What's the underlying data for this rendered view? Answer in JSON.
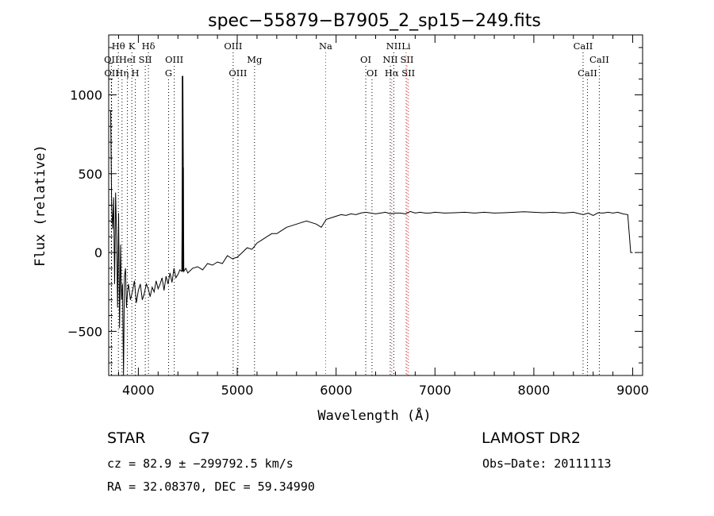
{
  "chart_data": {
    "type": "line",
    "title": "spec−55879−B7905_2_sp15−249.fits",
    "xlabel": "Wavelength (Å)",
    "ylabel": "Flux (relative)",
    "xlim": [
      3700,
      9100
    ],
    "ylim": [
      -780,
      1380
    ],
    "xticks": [
      4000,
      5000,
      6000,
      7000,
      8000,
      9000
    ],
    "yticks": [
      -500,
      0,
      500,
      1000
    ],
    "yticklabels": [
      "−500",
      "0",
      "500",
      "1000"
    ],
    "grid": false,
    "series": [
      {
        "x": [
          3720,
          3730,
          3740,
          3750,
          3760,
          3770,
          3780,
          3790,
          3800,
          3810,
          3820,
          3830,
          3840,
          3850,
          3860,
          3870,
          3880,
          3890,
          3900,
          3920,
          3940,
          3960,
          3980,
          4000,
          4020,
          4040,
          4060,
          4080,
          4100,
          4120,
          4140,
          4160,
          4180,
          4200,
          4220,
          4240,
          4260,
          4280,
          4300,
          4320,
          4340,
          4360,
          4380,
          4400,
          4420,
          4440,
          4450,
          4460,
          4480,
          4500,
          4550,
          4600,
          4650,
          4700,
          4750,
          4800,
          4850,
          4900,
          4950,
          5000,
          5050,
          5100,
          5150,
          5200,
          5250,
          5300,
          5350,
          5400,
          5450,
          5500,
          5550,
          5600,
          5650,
          5700,
          5750,
          5800,
          5850,
          5900,
          5950,
          6000,
          6050,
          6100,
          6150,
          6200,
          6250,
          6300,
          6350,
          6400,
          6450,
          6500,
          6550,
          6600,
          6650,
          6700,
          6750,
          6800,
          6850,
          6900,
          6950,
          7000,
          7100,
          7200,
          7300,
          7400,
          7500,
          7600,
          7700,
          7800,
          7900,
          8000,
          8100,
          8200,
          8300,
          8400,
          8500,
          8550,
          8600,
          8650,
          8700,
          8750,
          8800,
          8850,
          8900,
          8950,
          8980,
          9000
        ],
        "y": [
          900,
          300,
          150,
          350,
          -200,
          380,
          100,
          -350,
          250,
          -480,
          50,
          -300,
          -200,
          -780,
          -150,
          -100,
          -350,
          -250,
          -200,
          -300,
          -250,
          -180,
          -320,
          -240,
          -200,
          -300,
          -260,
          -200,
          -230,
          -280,
          -220,
          -250,
          -180,
          -230,
          -200,
          -160,
          -240,
          -150,
          -200,
          -130,
          -190,
          -100,
          -160,
          -140,
          -110,
          -120,
          1120,
          -120,
          -100,
          -130,
          -100,
          -90,
          -110,
          -70,
          -80,
          -60,
          -70,
          -20,
          -40,
          -30,
          0,
          30,
          20,
          60,
          80,
          100,
          120,
          120,
          140,
          160,
          170,
          180,
          190,
          200,
          190,
          180,
          160,
          210,
          220,
          230,
          240,
          235,
          245,
          240,
          250,
          255,
          250,
          245,
          250,
          255,
          245,
          250,
          250,
          245,
          260,
          250,
          255,
          250,
          250,
          255,
          250,
          252,
          255,
          250,
          255,
          250,
          252,
          255,
          258,
          255,
          252,
          255,
          250,
          255,
          240,
          250,
          235,
          252,
          250,
          255,
          250,
          255,
          245,
          240,
          0,
          0
        ],
        "spikes": [
          {
            "x": 4445,
            "y": 1120
          },
          {
            "x": 4455,
            "y": 540
          }
        ]
      }
    ],
    "spectral_lines": [
      {
        "label": "Hθ",
        "x": 3798,
        "row": 0
      },
      {
        "label": "K",
        "x": 3934,
        "row": 0
      },
      {
        "label": "Hδ",
        "x": 4102,
        "row": 0
      },
      {
        "label": "OII",
        "x": 3727,
        "row": 1
      },
      {
        "label": "HeI",
        "x": 3889,
        "row": 1
      },
      {
        "label": "SII",
        "x": 4070,
        "row": 1
      },
      {
        "label": "OIII",
        "x": 4363,
        "row": 1
      },
      {
        "label": "OII",
        "x": 3729,
        "row": 2
      },
      {
        "label": "Hη",
        "x": 3835,
        "row": 2
      },
      {
        "label": "H",
        "x": 3969,
        "row": 2
      },
      {
        "label": "G",
        "x": 4306,
        "row": 2
      },
      {
        "label": "OIII",
        "x": 4959,
        "row": 0
      },
      {
        "label": "Mg",
        "x": 5175,
        "row": 1
      },
      {
        "label": "OIII",
        "x": 5007,
        "row": 2
      },
      {
        "label": "Na",
        "x": 5894,
        "row": 0
      },
      {
        "label": "OI",
        "x": 6300,
        "row": 1
      },
      {
        "label": "OI",
        "x": 6363,
        "row": 2
      },
      {
        "label": "NII",
        "x": 6583,
        "row": 0
      },
      {
        "label": "Li",
        "x": 6708,
        "row": 0
      },
      {
        "label": "NII",
        "x": 6548,
        "row": 1
      },
      {
        "label": "SII",
        "x": 6717,
        "row": 1
      },
      {
        "label": "Hα",
        "x": 6563,
        "row": 2
      },
      {
        "label": "SII",
        "x": 6731,
        "row": 2
      },
      {
        "label": "CaII",
        "x": 8498,
        "row": 0
      },
      {
        "label": "CaII",
        "x": 8662,
        "row": 1
      },
      {
        "label": "CaII",
        "x": 8542,
        "row": 2
      }
    ],
    "line_colors": {
      "red": "#d62728",
      "black": "#000000"
    },
    "red_lines": [
      5894,
      6563,
      6708,
      6717,
      6731
    ]
  },
  "info": {
    "class": "STAR",
    "subclass": "G7",
    "survey": "LAMOST DR2",
    "cz": "cz = 82.9 ± −299792.5 km/s",
    "obs_date": "Obs−Date: 20111113",
    "coords": "RA =  32.08370, DEC =  59.34990"
  }
}
